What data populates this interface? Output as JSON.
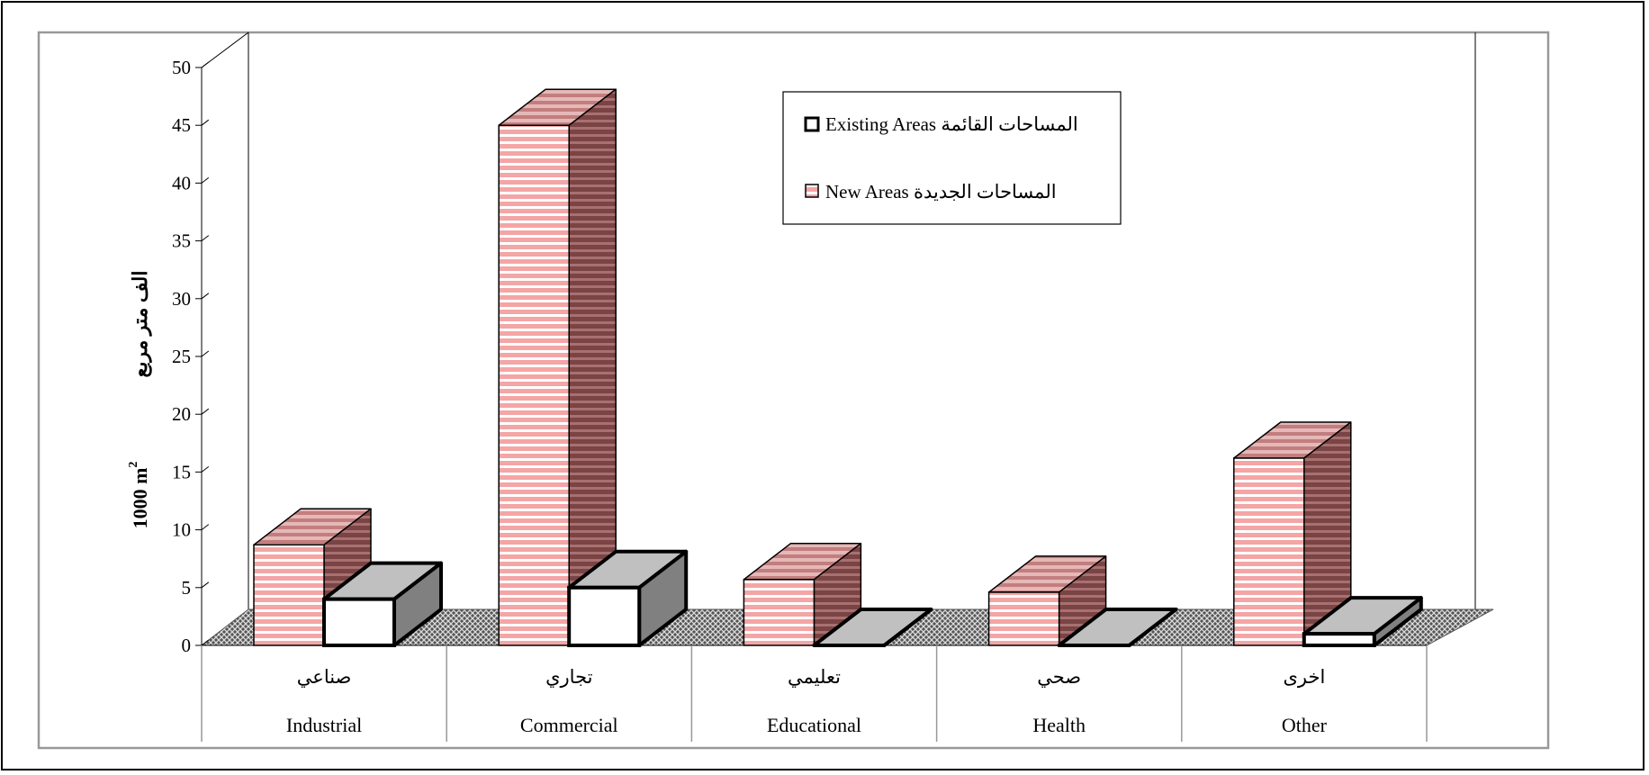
{
  "chart_data": {
    "type": "bar",
    "ylabel_arabic": "الف متر مربع",
    "ylabel_english": "1000 m",
    "ylabel_sup": "2",
    "ylim": [
      0,
      50
    ],
    "yticks": [
      "0",
      "5",
      "10",
      "15",
      "20",
      "25",
      "30",
      "35",
      "40",
      "45",
      "50"
    ],
    "categories_arabic": [
      "صناعي",
      "تجاري",
      "تعليمي",
      "صحي",
      "اخرى"
    ],
    "categories": [
      "Industrial",
      "Commercial",
      "Educational",
      "Health",
      "Other"
    ],
    "series": [
      {
        "name": "Existing Areas",
        "name_arabic": "المساحات  القائمة",
        "values": [
          4,
          5,
          0,
          0,
          1
        ]
      },
      {
        "name": "New Areas",
        "name_arabic": "المساحات  الجديدة",
        "values": [
          8.7,
          45,
          5.7,
          4.6,
          16.2
        ]
      }
    ],
    "legend_position": "top-right",
    "colors": {
      "new_front": "#f4a5a5",
      "new_stripe": "#ffffff",
      "new_top": "#c98585",
      "new_side": "#8a5050",
      "existing_front": "#ffffff",
      "existing_top": "#c0c0c0",
      "existing_side": "#808080",
      "floor": "#999999",
      "frame": "#999999"
    }
  }
}
